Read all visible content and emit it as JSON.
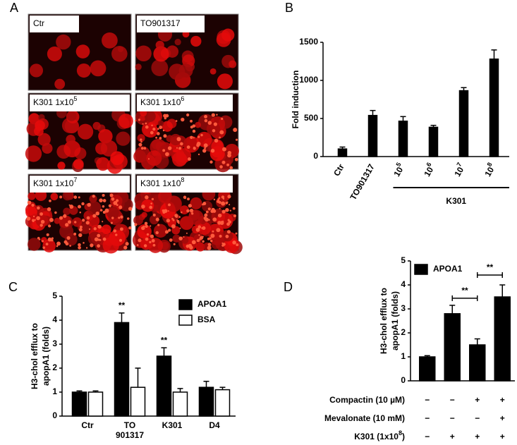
{
  "panel_labels": [
    "A",
    "B",
    "C",
    "D"
  ],
  "micrographs": [
    {
      "label": {
        "text": "Ctr"
      }
    },
    {
      "label": {
        "text": "TO901317"
      }
    },
    {
      "label": {
        "text": "K301 1x10",
        "sup": "5"
      }
    },
    {
      "label": {
        "text": "K301 1x10",
        "sup": "6"
      }
    },
    {
      "label": {
        "text": "K301 1x10",
        "sup": "7"
      }
    },
    {
      "label": {
        "text": "K301 1x10",
        "sup": "8"
      }
    }
  ],
  "chart_data": [
    {
      "type": "bar",
      "ylabel": [
        "Fold induction"
      ],
      "categories": [
        "Ctr",
        "TO901317",
        {
          "text": "10",
          "sup": "5"
        },
        {
          "text": "10",
          "sup": "6"
        },
        {
          "text": "10",
          "sup": "7"
        },
        {
          "text": "10",
          "sup": "8"
        }
      ],
      "values": [
        100,
        540,
        465,
        385,
        865,
        1280
      ],
      "errors": [
        25,
        65,
        60,
        25,
        40,
        120
      ],
      "color": "#000000",
      "group_label": "K301",
      "ylim": [
        0,
        1500
      ],
      "yticks": [
        0,
        500,
        1000,
        1500
      ]
    },
    {
      "type": "bar",
      "ylabel": [
        "H3-chol efflux to",
        "apopA1 (folds)"
      ],
      "categories": [
        "Ctr",
        "TO 901317",
        "K301",
        "D4"
      ],
      "series": [
        {
          "name": "APOA1",
          "color": "#000000",
          "values": [
            1.0,
            3.9,
            2.5,
            1.2
          ],
          "errors": [
            0.05,
            0.4,
            0.35,
            0.25
          ],
          "annotations": [
            null,
            "**",
            "**",
            null
          ]
        },
        {
          "name": "BSA",
          "color": "#ffffff",
          "values": [
            1.0,
            1.2,
            1.0,
            1.1
          ],
          "errors": [
            0.05,
            0.8,
            0.15,
            0.1
          ]
        }
      ],
      "ylim": [
        0,
        5
      ],
      "yticks": [
        0,
        1,
        2,
        3,
        4,
        5
      ],
      "legend": "upper right"
    },
    {
      "type": "bar",
      "ylabel": [
        "H3-chol efflux to",
        "apopA1 (folds)"
      ],
      "series": [
        {
          "name": "APOA1",
          "color": "#000000",
          "values": [
            1.0,
            2.8,
            1.5,
            3.5
          ],
          "errors": [
            0.05,
            0.35,
            0.25,
            0.5
          ]
        }
      ],
      "significance": [
        "**",
        "**"
      ],
      "treatments": [
        {
          "label": {
            "text": "Compactin (10 µM)"
          },
          "signs": [
            "−",
            "−",
            "+",
            "+"
          ]
        },
        {
          "label": {
            "text": "Mevalonate (10 mM)"
          },
          "signs": [
            "−",
            "−",
            "−",
            "+"
          ]
        },
        {
          "label": {
            "text": "K301 (1x10",
            "sup": "8",
            "tail": ")"
          },
          "signs": [
            "−",
            "+",
            "+",
            "+"
          ]
        }
      ],
      "ylim": [
        0,
        5
      ],
      "yticks": [
        0,
        1,
        2,
        3,
        4,
        5
      ],
      "legend": "upper left"
    }
  ]
}
